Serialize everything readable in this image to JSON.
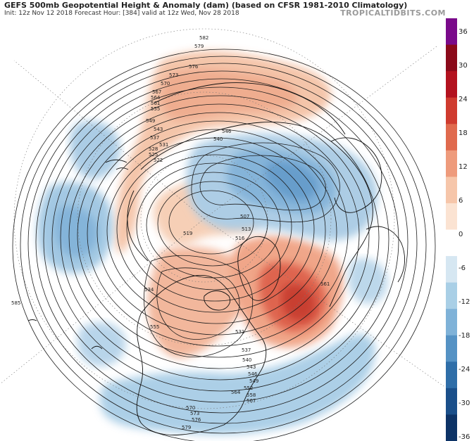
{
  "header": {
    "title": "GEFS 500mb Geopotential Height & Anomaly (dam) (based on CFSR 1981-2010 Climatology)",
    "init_line": "Init: 12z Nov 12 2018   Forecast Hour: [384]   valid at 12z Wed, Nov 28 2018",
    "brand": "TROPICALTIDBITS.COM"
  },
  "colorbar": {
    "ticks": [
      "36",
      "30",
      "24",
      "18",
      "12",
      "6",
      "0",
      "-6",
      "-12",
      "-18",
      "-24",
      "-30",
      "-36"
    ],
    "colors_top_to_bottom": [
      "#7a0a8a",
      "#8b0a1a",
      "#b3121f",
      "#cf3b2f",
      "#e06a4e",
      "#ee9b7c",
      "#f6c6aa",
      "#fbe3d2",
      "#ffffff",
      "#d6e7f2",
      "#a9cfe6",
      "#7fb2d8",
      "#5592c4",
      "#2f6ea8",
      "#1a4f8a",
      "#0d3366"
    ]
  },
  "contours": {
    "height_labels": [
      {
        "text": "582"
      },
      {
        "text": "579"
      },
      {
        "text": "576"
      },
      {
        "text": "573"
      },
      {
        "text": "570"
      },
      {
        "text": "567"
      },
      {
        "text": "564"
      },
      {
        "text": "561"
      },
      {
        "text": "555"
      },
      {
        "text": "549"
      },
      {
        "text": "543"
      },
      {
        "text": "537"
      },
      {
        "text": "531"
      },
      {
        "text": "528"
      },
      {
        "text": "525"
      },
      {
        "text": "522"
      },
      {
        "text": "519"
      },
      {
        "text": "516"
      },
      {
        "text": "513"
      },
      {
        "text": "507"
      },
      {
        "text": "546"
      },
      {
        "text": "540"
      },
      {
        "text": "534"
      },
      {
        "text": "561"
      },
      {
        "text": "585"
      },
      {
        "text": "555"
      },
      {
        "text": "570"
      },
      {
        "text": "573"
      },
      {
        "text": "576"
      },
      {
        "text": "579"
      },
      {
        "text": "537"
      },
      {
        "text": "540"
      },
      {
        "text": "543"
      },
      {
        "text": "546"
      },
      {
        "text": "549"
      },
      {
        "text": "552"
      },
      {
        "text": "558"
      },
      {
        "text": "564"
      },
      {
        "text": "567"
      },
      {
        "text": "531"
      }
    ]
  },
  "anomalies": [
    {
      "kind": "positive",
      "color": "#f2b193",
      "region": "central Siberia / Arctic"
    },
    {
      "kind": "positive",
      "color": "#f3bca0",
      "region": "northwest Pacific ridge"
    },
    {
      "kind": "positive",
      "color": "#f4c0a5",
      "region": "western North America"
    },
    {
      "kind": "positive_strong",
      "color": "#d44a3a",
      "region": "eastern Canada / Labrador"
    },
    {
      "kind": "negative",
      "color": "#6fa7d3",
      "region": "Europe / Scandinavia"
    },
    {
      "kind": "negative",
      "color": "#8cbcdf",
      "region": "North Pacific"
    },
    {
      "kind": "negative",
      "color": "#9ec8e4",
      "region": "southern United States / Atlantic"
    },
    {
      "kind": "negative",
      "color": "#a8cde6",
      "region": "central Asia"
    }
  ]
}
